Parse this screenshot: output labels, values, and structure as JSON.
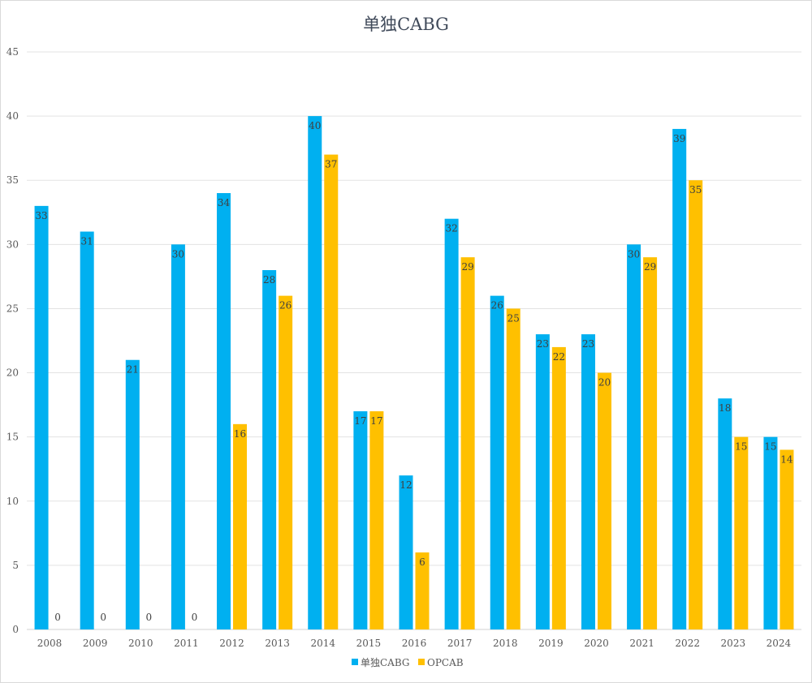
{
  "chart_data": {
    "type": "bar",
    "title": "单独CABG",
    "categories": [
      "2008",
      "2009",
      "2010",
      "2011",
      "2012",
      "2013",
      "2014",
      "2015",
      "2016",
      "2017",
      "2018",
      "2019",
      "2020",
      "2021",
      "2022",
      "2023",
      "2024"
    ],
    "series": [
      {
        "name": "单独CABG",
        "color": "#00b0f0",
        "values": [
          33,
          31,
          21,
          30,
          34,
          28,
          40,
          17,
          12,
          32,
          26,
          23,
          23,
          30,
          39,
          18,
          15
        ]
      },
      {
        "name": "OPCAB",
        "color": "#ffc000",
        "values": [
          0,
          0,
          0,
          0,
          16,
          26,
          37,
          17,
          6,
          29,
          25,
          22,
          20,
          29,
          35,
          15,
          14
        ]
      }
    ],
    "ylim": [
      0,
      45
    ],
    "yticks": [
      0,
      5,
      10,
      15,
      20,
      25,
      30,
      35,
      40,
      45
    ],
    "grid": true,
    "legend": "bottom",
    "data_labels": "inside-end"
  }
}
